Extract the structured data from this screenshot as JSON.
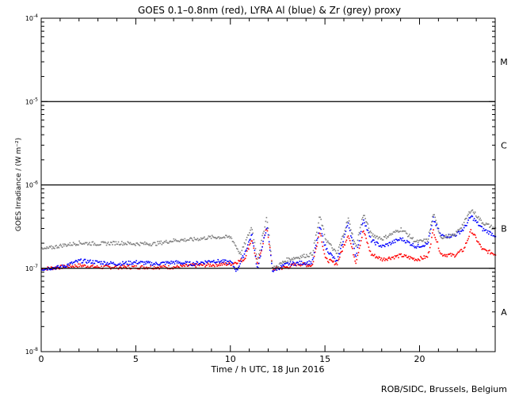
{
  "chart_data": {
    "type": "scatter",
    "title": "GOES 0.1–0.8nm (red), LYRA Al (blue) & Zr (grey) proxy",
    "xlabel": "Time / h UTC, 18 Jun 2016",
    "ylabel": "GOES Irradiance / (W m⁻²)",
    "xlim": [
      0,
      24
    ],
    "ylim": [
      1e-08,
      0.0001
    ],
    "yscale": "log",
    "x_ticks": [
      "0",
      "5",
      "10",
      "15",
      "20"
    ],
    "x_tick_values": [
      0,
      5,
      10,
      15,
      20
    ],
    "y_ticks": [
      {
        "base": "10",
        "exp": "-4",
        "value": 0.0001
      },
      {
        "base": "10",
        "exp": "-5",
        "value": 1e-05
      },
      {
        "base": "10",
        "exp": "-6",
        "value": 1e-06
      },
      {
        "base": "10",
        "exp": "-7",
        "value": 1e-07
      },
      {
        "base": "10",
        "exp": "-8",
        "value": 1e-08
      }
    ],
    "flare_classes": [
      {
        "label": "M",
        "value": 3e-05
      },
      {
        "label": "C",
        "value": 3e-06
      },
      {
        "label": "B",
        "value": 3e-07
      },
      {
        "label": "A",
        "value": 3e-08
      }
    ],
    "class_lines": [
      1e-05,
      1e-06,
      1e-07
    ],
    "grid": false,
    "series": [
      {
        "name": "GOES 0.1-0.8nm",
        "color": "#ff0000",
        "points": [
          [
            0,
            1e-07
          ],
          [
            1,
            1.05e-07
          ],
          [
            2,
            1.1e-07
          ],
          [
            3,
            1.05e-07
          ],
          [
            4,
            1.05e-07
          ],
          [
            5,
            1.05e-07
          ],
          [
            6,
            1.05e-07
          ],
          [
            7,
            1.05e-07
          ],
          [
            8,
            1.1e-07
          ],
          [
            9,
            1.12e-07
          ],
          [
            10,
            1.15e-07
          ],
          [
            10.7,
            1.3e-07
          ],
          [
            11.1,
            2.3e-07
          ],
          [
            11.4,
            1.1e-07
          ],
          [
            11.9,
            3.2e-07
          ],
          [
            12.2,
            1e-07
          ],
          [
            13,
            1.05e-07
          ],
          [
            13.5,
            1.15e-07
          ],
          [
            14.3,
            1.1e-07
          ],
          [
            14.7,
            2.9e-07
          ],
          [
            15,
            1.3e-07
          ],
          [
            15.6,
            1.15e-07
          ],
          [
            16.2,
            2.6e-07
          ],
          [
            16.6,
            1.2e-07
          ],
          [
            17,
            2.9e-07
          ],
          [
            17.4,
            1.5e-07
          ],
          [
            18,
            1.3e-07
          ],
          [
            19,
            1.45e-07
          ],
          [
            19.8,
            1.3e-07
          ],
          [
            20.4,
            1.4e-07
          ],
          [
            20.7,
            2.9e-07
          ],
          [
            21.1,
            1.5e-07
          ],
          [
            21.8,
            1.45e-07
          ],
          [
            22.3,
            1.7e-07
          ],
          [
            22.7,
            2.9e-07
          ],
          [
            23.3,
            1.7e-07
          ],
          [
            24,
            1.5e-07
          ]
        ]
      },
      {
        "name": "LYRA Al proxy",
        "color": "#0000ff",
        "points": [
          [
            0,
            1e-07
          ],
          [
            1,
            1.05e-07
          ],
          [
            2,
            1.25e-07
          ],
          [
            3,
            1.2e-07
          ],
          [
            4,
            1.15e-07
          ],
          [
            5,
            1.2e-07
          ],
          [
            6,
            1.15e-07
          ],
          [
            7,
            1.2e-07
          ],
          [
            8,
            1.15e-07
          ],
          [
            9,
            1.25e-07
          ],
          [
            10,
            1.2e-07
          ],
          [
            10.3,
            9.5e-08
          ],
          [
            10.7,
            1.5e-07
          ],
          [
            11.1,
            2.6e-07
          ],
          [
            11.4,
            1e-07
          ],
          [
            11.9,
            3.3e-07
          ],
          [
            12.2,
            9.5e-08
          ],
          [
            13,
            1.15e-07
          ],
          [
            14.3,
            1.2e-07
          ],
          [
            14.7,
            3.2e-07
          ],
          [
            15,
            1.8e-07
          ],
          [
            15.6,
            1.2e-07
          ],
          [
            16.2,
            3.6e-07
          ],
          [
            16.6,
            1.4e-07
          ],
          [
            17,
            4e-07
          ],
          [
            17.4,
            2.2e-07
          ],
          [
            18,
            1.85e-07
          ],
          [
            19,
            2.3e-07
          ],
          [
            19.8,
            1.85e-07
          ],
          [
            20.4,
            2e-07
          ],
          [
            20.7,
            4e-07
          ],
          [
            21.1,
            2.5e-07
          ],
          [
            21.8,
            2.5e-07
          ],
          [
            22.3,
            3e-07
          ],
          [
            22.7,
            4.3e-07
          ],
          [
            23.3,
            3e-07
          ],
          [
            24,
            2.5e-07
          ]
        ]
      },
      {
        "name": "LYRA Zr proxy",
        "color": "#808080",
        "points": [
          [
            0,
            1.7e-07
          ],
          [
            1,
            1.9e-07
          ],
          [
            2,
            2.05e-07
          ],
          [
            3,
            2e-07
          ],
          [
            4,
            2.05e-07
          ],
          [
            5,
            2e-07
          ],
          [
            6,
            2e-07
          ],
          [
            7,
            2.2e-07
          ],
          [
            8,
            2.25e-07
          ],
          [
            9,
            2.4e-07
          ],
          [
            10,
            2.4e-07
          ],
          [
            10.5,
            1.5e-07
          ],
          [
            11.1,
            3.2e-07
          ],
          [
            11.4,
            1.3e-07
          ],
          [
            11.9,
            4.3e-07
          ],
          [
            12.2,
            1e-07
          ],
          [
            13,
            1.3e-07
          ],
          [
            14.3,
            1.5e-07
          ],
          [
            14.7,
            4.3e-07
          ],
          [
            15,
            2.3e-07
          ],
          [
            15.6,
            1.5e-07
          ],
          [
            16.2,
            4e-07
          ],
          [
            16.6,
            1.8e-07
          ],
          [
            17,
            4.6e-07
          ],
          [
            17.4,
            2.6e-07
          ],
          [
            18,
            2.3e-07
          ],
          [
            19,
            3e-07
          ],
          [
            19.8,
            2.1e-07
          ],
          [
            20.4,
            2.2e-07
          ],
          [
            20.7,
            4.6e-07
          ],
          [
            21.1,
            2.4e-07
          ],
          [
            21.8,
            2.5e-07
          ],
          [
            22.3,
            3.5e-07
          ],
          [
            22.7,
            5.2e-07
          ],
          [
            23.3,
            3.6e-07
          ],
          [
            24,
            3e-07
          ]
        ]
      }
    ]
  },
  "footer": "ROB/SIDC, Brussels, Belgium"
}
